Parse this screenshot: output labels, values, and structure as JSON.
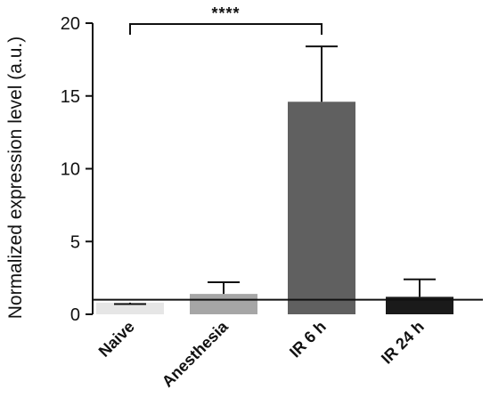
{
  "chart_data": {
    "type": "bar",
    "title": "",
    "xlabel": "",
    "ylabel": "Normalized expression level (a.u.)",
    "ylim": [
      0,
      20
    ],
    "yticks": [
      0,
      5,
      10,
      15,
      20
    ],
    "categories": [
      "Naive",
      "Anesthesia",
      "IR 6 h",
      "IR 24 h"
    ],
    "values": [
      0.8,
      1.4,
      14.6,
      1.2
    ],
    "error_upper": [
      0.7,
      2.2,
      18.4,
      2.4
    ],
    "bar_colors": [
      "#e6e6e6",
      "#a6a6a6",
      "#606060",
      "#1a1a1a"
    ],
    "reference_line": 1.0,
    "significance": {
      "from": "Naive",
      "to": "IR 6 h",
      "label": "****"
    },
    "grid": false,
    "legend": "none"
  }
}
